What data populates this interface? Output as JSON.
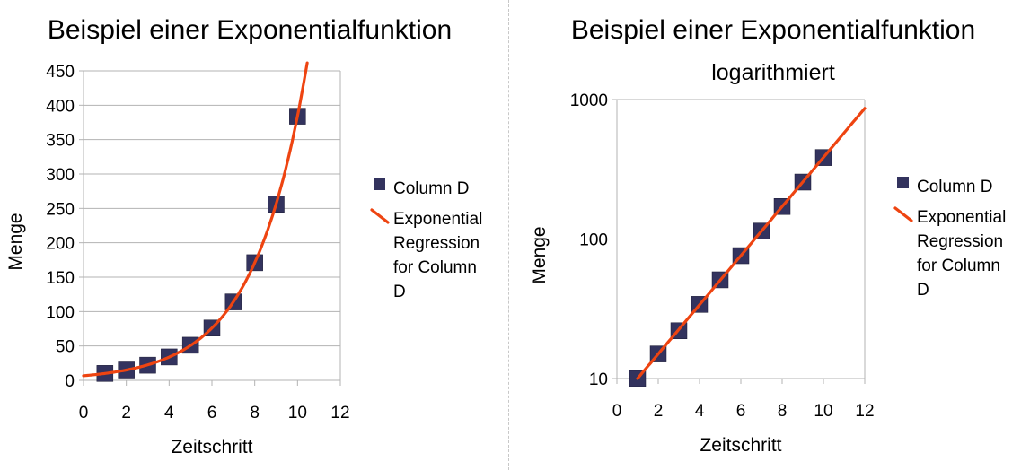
{
  "chart_data": [
    {
      "type": "scatter",
      "title": "Beispiel einer Exponentialfunktion",
      "subtitle": "",
      "xlabel": "Zeitschritt",
      "ylabel": "Menge",
      "xlim": [
        0,
        12
      ],
      "ylim": [
        0,
        450
      ],
      "y_scale": "linear",
      "x_ticks": [
        "0",
        "2",
        "4",
        "6",
        "8",
        "10",
        "12"
      ],
      "y_ticks": [
        "0",
        "50",
        "100",
        "150",
        "200",
        "250",
        "300",
        "350",
        "400",
        "450"
      ],
      "grid": "horizontal",
      "legend_position": "right",
      "series": [
        {
          "name": "Column D",
          "kind": "points",
          "marker": "square",
          "color": "#33335e",
          "x": [
            1,
            2,
            3,
            4,
            5,
            6,
            7,
            8,
            9,
            10
          ],
          "y": [
            10,
            15,
            22,
            34,
            51,
            76,
            114,
            171,
            256,
            384
          ]
        },
        {
          "name": "Exponential Regression for Column D",
          "kind": "line",
          "color": "#ee4411",
          "model": {
            "a": 6.67,
            "b": 1.5
          },
          "x_range": [
            0,
            10.45
          ]
        }
      ]
    },
    {
      "type": "scatter",
      "title": "Beispiel einer Exponentialfunktion",
      "subtitle": "logarithmiert",
      "xlabel": "Zeitschritt",
      "ylabel": "Menge",
      "xlim": [
        0,
        12
      ],
      "ylim": [
        10,
        1000
      ],
      "y_scale": "log",
      "x_ticks": [
        "0",
        "2",
        "4",
        "6",
        "8",
        "10",
        "12"
      ],
      "y_ticks": [
        "10",
        "100",
        "1000"
      ],
      "grid": "horizontal",
      "legend_position": "right",
      "series": [
        {
          "name": "Column D",
          "kind": "points",
          "marker": "square",
          "color": "#33335e",
          "x": [
            1,
            2,
            3,
            4,
            5,
            6,
            7,
            8,
            9,
            10
          ],
          "y": [
            10,
            15,
            22,
            34,
            51,
            76,
            114,
            171,
            256,
            384
          ]
        },
        {
          "name": "Exponential Regression for Column D",
          "kind": "line",
          "color": "#ee4411",
          "model": {
            "a": 6.67,
            "b": 1.5
          },
          "x_range": [
            1,
            12
          ]
        }
      ]
    }
  ]
}
